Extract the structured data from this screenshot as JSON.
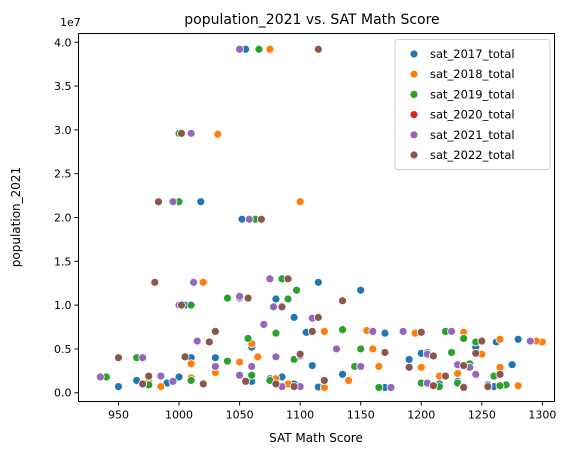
{
  "chart_data": {
    "type": "scatter",
    "title": "population_2021 vs. SAT Math Score",
    "xlabel": "SAT Math Score",
    "ylabel": "population_2021",
    "y_scale_note": "1e7",
    "xlim": [
      917,
      1310
    ],
    "ylim": [
      -1000000,
      41000000
    ],
    "x_ticks": [
      950,
      1000,
      1050,
      1100,
      1150,
      1200,
      1250,
      1300
    ],
    "x_tick_labels": [
      "950",
      "1000",
      "1050",
      "1100",
      "1150",
      "1200",
      "1250",
      "1300"
    ],
    "y_ticks": [
      0,
      5000000,
      10000000,
      15000000,
      20000000,
      25000000,
      30000000,
      35000000,
      40000000
    ],
    "y_tick_labels": [
      "0.0",
      "0.5",
      "1.0",
      "1.5",
      "2.0",
      "2.5",
      "3.0",
      "3.5",
      "4.0"
    ],
    "legend_position": "top-right",
    "grid": false,
    "series": [
      {
        "name": "sat_2017_total",
        "color": "#1f77b4",
        "points": [
          [
            1055,
            39200000
          ],
          [
            1018,
            21800000
          ],
          [
            1052,
            19800000
          ],
          [
            1005,
            10000000
          ],
          [
            1115,
            12600000
          ],
          [
            1150,
            11700000
          ],
          [
            1080,
            10700000
          ],
          [
            1050,
            10800000
          ],
          [
            1095,
            8600000
          ],
          [
            1120,
            7000000
          ],
          [
            1105,
            6900000
          ],
          [
            1170,
            6800000
          ],
          [
            1280,
            6100000
          ],
          [
            1262,
            5800000
          ],
          [
            1245,
            5200000
          ],
          [
            1060,
            5200000
          ],
          [
            1010,
            4000000
          ],
          [
            1200,
            4500000
          ],
          [
            1030,
            4000000
          ],
          [
            1190,
            3800000
          ],
          [
            1110,
            3100000
          ],
          [
            1275,
            3200000
          ],
          [
            1135,
            2100000
          ],
          [
            1075,
            1600000
          ],
          [
            1085,
            1800000
          ],
          [
            1000,
            1800000
          ],
          [
            965,
            1400000
          ],
          [
            1230,
            1300000
          ],
          [
            950,
            700000
          ],
          [
            1060,
            1300000
          ],
          [
            1170,
            600000
          ],
          [
            1260,
            700000
          ],
          [
            1115,
            650000
          ],
          [
            1215,
            1000000
          ],
          [
            1095,
            1000000
          ],
          [
            1255,
            900000
          ],
          [
            990,
            1100000
          ]
        ]
      },
      {
        "name": "sat_2018_total",
        "color": "#ff7f0e",
        "points": [
          [
            1075,
            39200000
          ],
          [
            1100,
            21800000
          ],
          [
            1032,
            29500000
          ],
          [
            1020,
            12600000
          ],
          [
            1120,
            7000000
          ],
          [
            1155,
            7100000
          ],
          [
            1195,
            6800000
          ],
          [
            1235,
            6900000
          ],
          [
            1300,
            5800000
          ],
          [
            1295,
            5900000
          ],
          [
            1265,
            6100000
          ],
          [
            1060,
            5600000
          ],
          [
            1050,
            3500000
          ],
          [
            1160,
            5000000
          ],
          [
            1250,
            4400000
          ],
          [
            1225,
            4600000
          ],
          [
            1165,
            3000000
          ],
          [
            1240,
            3200000
          ],
          [
            1200,
            2900000
          ],
          [
            1265,
            2900000
          ],
          [
            1030,
            2300000
          ],
          [
            1010,
            3300000
          ],
          [
            1080,
            1600000
          ],
          [
            1090,
            1000000
          ],
          [
            1140,
            1400000
          ],
          [
            1010,
            1700000
          ],
          [
            1255,
            700000
          ],
          [
            1280,
            800000
          ],
          [
            1120,
            600000
          ],
          [
            1230,
            2200000
          ],
          [
            1065,
            4100000
          ],
          [
            975,
            1300000
          ],
          [
            985,
            700000
          ],
          [
            1020,
            1100000
          ],
          [
            1170,
            4600000
          ],
          [
            1215,
            1900000
          ]
        ]
      },
      {
        "name": "sat_2019_total",
        "color": "#2ca02c",
        "points": [
          [
            1066,
            39200000
          ],
          [
            1000,
            29600000
          ],
          [
            1000,
            21800000
          ],
          [
            1063,
            19800000
          ],
          [
            1010,
            10000000
          ],
          [
            1085,
            13000000
          ],
          [
            1097,
            11700000
          ],
          [
            1090,
            10700000
          ],
          [
            1040,
            10800000
          ],
          [
            1080,
            6800000
          ],
          [
            1057,
            6200000
          ],
          [
            1135,
            7200000
          ],
          [
            1220,
            7000000
          ],
          [
            1290,
            5900000
          ],
          [
            1245,
            5800000
          ],
          [
            1235,
            6200000
          ],
          [
            965,
            4000000
          ],
          [
            1150,
            5000000
          ],
          [
            1205,
            4600000
          ],
          [
            1225,
            4600000
          ],
          [
            1040,
            3600000
          ],
          [
            1095,
            3800000
          ],
          [
            1145,
            3000000
          ],
          [
            1240,
            3300000
          ],
          [
            1270,
            900000
          ],
          [
            1265,
            800000
          ],
          [
            1200,
            1100000
          ],
          [
            1010,
            1400000
          ],
          [
            975,
            900000
          ],
          [
            940,
            1800000
          ],
          [
            1075,
            1400000
          ],
          [
            1260,
            1900000
          ],
          [
            1100,
            700000
          ],
          [
            1215,
            700000
          ],
          [
            1230,
            1100000
          ],
          [
            1165,
            600000
          ],
          [
            1060,
            2000000
          ]
        ]
      },
      {
        "name": "sat_2020_total",
        "color": "#d62728",
        "points": []
      },
      {
        "name": "sat_2021_total",
        "color": "#9467bd",
        "points": [
          [
            1050,
            39200000
          ],
          [
            1010,
            29600000
          ],
          [
            995,
            21800000
          ],
          [
            1058,
            19800000
          ],
          [
            1000,
            10000000
          ],
          [
            1012,
            12600000
          ],
          [
            1075,
            13000000
          ],
          [
            1050,
            11000000
          ],
          [
            1070,
            7800000
          ],
          [
            1078,
            9800000
          ],
          [
            1110,
            8500000
          ],
          [
            1160,
            7000000
          ],
          [
            1225,
            7000000
          ],
          [
            1185,
            7000000
          ],
          [
            1290,
            5900000
          ],
          [
            1100,
            4200000
          ],
          [
            1080,
            4100000
          ],
          [
            1205,
            4400000
          ],
          [
            1230,
            3200000
          ],
          [
            1240,
            2900000
          ],
          [
            1060,
            3000000
          ],
          [
            1130,
            5000000
          ],
          [
            1150,
            3000000
          ],
          [
            1030,
            3000000
          ],
          [
            1050,
            2000000
          ],
          [
            995,
            1300000
          ],
          [
            985,
            1900000
          ],
          [
            970,
            4000000
          ],
          [
            935,
            1800000
          ],
          [
            1100,
            700000
          ],
          [
            1205,
            1100000
          ],
          [
            1245,
            2100000
          ],
          [
            1175,
            600000
          ],
          [
            1235,
            700000
          ],
          [
            1085,
            700000
          ],
          [
            1015,
            5900000
          ]
        ]
      },
      {
        "name": "sat_2022_total",
        "color": "#8c564b",
        "points": [
          [
            1115,
            39200000
          ],
          [
            1002,
            29600000
          ],
          [
            983,
            21800000
          ],
          [
            1068,
            19800000
          ],
          [
            1002,
            10000000
          ],
          [
            980,
            12600000
          ],
          [
            1090,
            13000000
          ],
          [
            1057,
            10800000
          ],
          [
            1085,
            9800000
          ],
          [
            1115,
            8600000
          ],
          [
            1135,
            10500000
          ],
          [
            1030,
            7000000
          ],
          [
            1025,
            5800000
          ],
          [
            1110,
            7000000
          ],
          [
            1200,
            6900000
          ],
          [
            1250,
            5900000
          ],
          [
            950,
            4000000
          ],
          [
            1005,
            4100000
          ],
          [
            1100,
            4400000
          ],
          [
            1245,
            4500000
          ],
          [
            1170,
            4600000
          ],
          [
            1210,
            4200000
          ],
          [
            1235,
            3100000
          ],
          [
            1190,
            2900000
          ],
          [
            1220,
            1900000
          ],
          [
            970,
            1000000
          ],
          [
            975,
            1900000
          ],
          [
            1055,
            1300000
          ],
          [
            1080,
            1000000
          ],
          [
            1120,
            1400000
          ],
          [
            1255,
            700000
          ],
          [
            1210,
            800000
          ],
          [
            1095,
            700000
          ],
          [
            1235,
            600000
          ],
          [
            1265,
            2100000
          ],
          [
            1020,
            1000000
          ]
        ]
      }
    ]
  }
}
